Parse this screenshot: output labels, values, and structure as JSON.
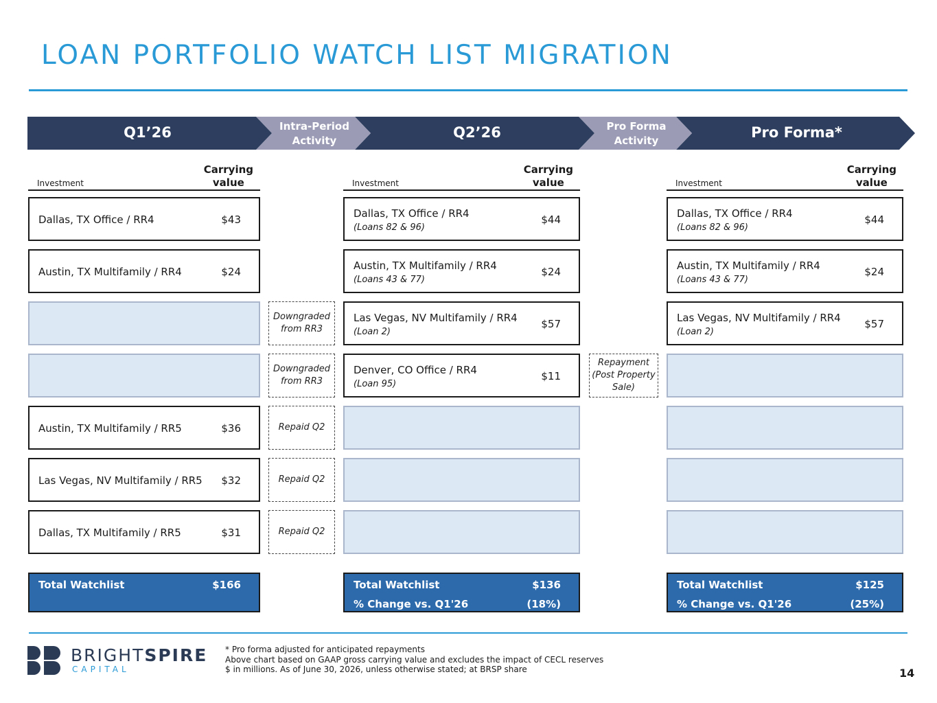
{
  "title": "LOAN PORTFOLIO WATCH LIST MIGRATION",
  "header": {
    "q1": "Q1’26",
    "intra": [
      "Intra-Period",
      "Activity"
    ],
    "q2": "Q2’26",
    "proforma_activity": [
      "Pro Forma",
      "Activity"
    ],
    "proforma": "Pro Forma*"
  },
  "colors": {
    "navy": "#2d3e5e",
    "gray_chevron": "#9b9bb5",
    "accent_blue": "#2a9ad6",
    "total_blue": "#2c6aac",
    "empty_fill": "#dde8f5"
  },
  "col_headers": {
    "investment": "Investment",
    "carrying": [
      "Carrying",
      "value"
    ]
  },
  "q1_rows": [
    {
      "name": "Dallas, TX Office / RR4",
      "value": "$43"
    },
    {
      "name": "Austin, TX Multifamily / RR4",
      "value": "$24"
    },
    null,
    null,
    {
      "name": "Austin, TX Multifamily / RR5",
      "value": "$36"
    },
    {
      "name": "Las Vegas, NV Multifamily / RR5",
      "value": "$32"
    },
    {
      "name": "Dallas, TX Multifamily / RR5",
      "value": "$31"
    }
  ],
  "intra_activity": [
    null,
    null,
    [
      "Downgraded",
      "from RR3"
    ],
    [
      "Downgraded",
      "from RR3"
    ],
    [
      "Repaid Q2"
    ],
    [
      "Repaid Q2"
    ],
    [
      "Repaid Q2"
    ]
  ],
  "q2_rows": [
    {
      "name": "Dallas, TX Office / RR4",
      "sub": "(Loans 82 & 96)",
      "value": "$44"
    },
    {
      "name": "Austin, TX Multifamily / RR4",
      "sub": "(Loans 43 & 77)",
      "value": "$24"
    },
    {
      "name": "Las Vegas, NV Multifamily / RR4",
      "sub": "(Loan 2)",
      "value": "$57"
    },
    {
      "name": "Denver, CO Office / RR4",
      "sub": "(Loan 95)",
      "value": "$11"
    },
    null,
    null,
    null
  ],
  "proforma_activity_items": [
    null,
    null,
    null,
    [
      "Repayment",
      "(Post Property",
      "Sale)"
    ],
    null,
    null,
    null
  ],
  "proforma_rows": [
    {
      "name": "Dallas, TX Office / RR4",
      "sub": "(Loans 82 & 96)",
      "value": "$44"
    },
    {
      "name": "Austin, TX Multifamily / RR4",
      "sub": "(Loans 43 & 77)",
      "value": "$24"
    },
    {
      "name": "Las Vegas, NV Multifamily / RR4",
      "sub": "(Loan 2)",
      "value": "$57"
    },
    null,
    null,
    null,
    null
  ],
  "totals": {
    "q1": {
      "label": "Total Watchlist",
      "value": "$166"
    },
    "q2": {
      "label": "Total Watchlist",
      "value": "$136",
      "change_label": "% Change vs. Q1'26",
      "change_value": "(18%)"
    },
    "proforma": {
      "label": "Total Watchlist",
      "value": "$125",
      "change_label": "% Change vs. Q1'26",
      "change_value": "(25%)"
    }
  },
  "logo": {
    "word_light": "BRIGHT",
    "word_bold": "SPIRE",
    "sub": "CAPITAL"
  },
  "footnotes": [
    "* Pro forma adjusted for anticipated repayments",
    "Above chart based on GAAP gross carrying value and excludes the impact of CECL reserves",
    "$ in millions. As of June 30, 2026, unless otherwise stated; at BRSP share"
  ],
  "page_number": "14"
}
